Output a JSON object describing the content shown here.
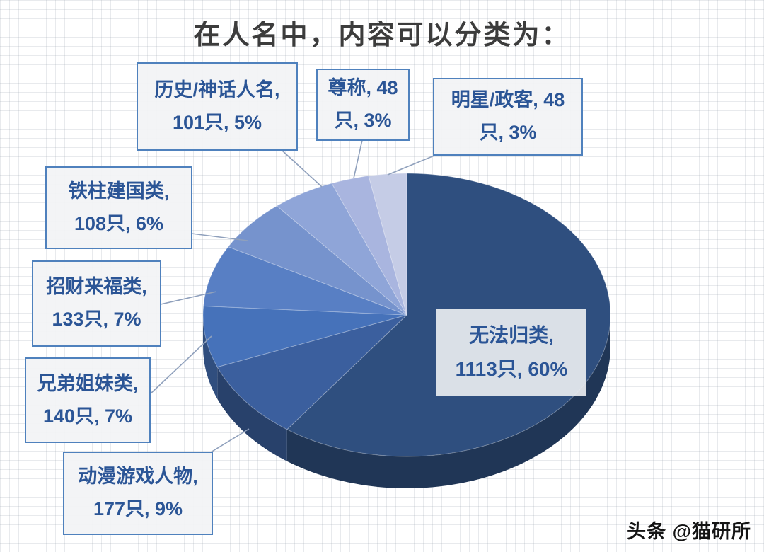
{
  "title": "在人名中，内容可以分类为：",
  "watermark": "头条 @猫研所",
  "chart_data": {
    "type": "pie",
    "style": "3d",
    "title": "在人名中，内容可以分类为：",
    "unit": "只",
    "start_angle_deg": 0,
    "direction": "clockwise",
    "legend_position": "callouts",
    "slices": [
      {
        "label": "无法归类",
        "count": 1113,
        "percent": 60,
        "color": "#2F4F7F"
      },
      {
        "label": "动漫游戏人物",
        "count": 177,
        "percent": 9,
        "color": "#3B5F9E"
      },
      {
        "label": "兄弟姐妹类",
        "count": 140,
        "percent": 7,
        "color": "#4672BA"
      },
      {
        "label": "招财来福类",
        "count": 133,
        "percent": 7,
        "color": "#587FC4"
      },
      {
        "label": "铁柱建国类",
        "count": 108,
        "percent": 6,
        "color": "#7693CD"
      },
      {
        "label": "历史/神话人名",
        "count": 101,
        "percent": 5,
        "color": "#8FA5D8"
      },
      {
        "label": "尊称",
        "count": 48,
        "percent": 3,
        "color": "#A9B5DF"
      },
      {
        "label": "明星/政客",
        "count": 48,
        "percent": 3,
        "color": "#C5CCE6"
      }
    ]
  },
  "callouts": {
    "history": {
      "line1": "历史/神话人名,",
      "line2": "101只, 5%"
    },
    "honorific": {
      "line1": "尊称, 48",
      "line2": "只, 3%"
    },
    "celebrity": {
      "line1": "明星/政客, 48",
      "line2": "只, 3%"
    },
    "tiezhu": {
      "line1": "铁柱建国类,",
      "line2": "108只, 6%"
    },
    "zhaocai": {
      "line1": "招财来福类,",
      "line2": "133只, 7%"
    },
    "siblings": {
      "line1": "兄弟姐妹类,",
      "line2": "140只, 7%"
    },
    "anime": {
      "line1": "动漫游戏人物,",
      "line2": "177只, 9%"
    },
    "unclassified": {
      "line1": "无法归类,",
      "line2": "1113只, 60%"
    }
  },
  "colors": {
    "callout_border": "#4f81bd",
    "callout_text": "#2b5596",
    "leader_line": "#8fa0bc",
    "title_text": "#3c3c3c"
  }
}
